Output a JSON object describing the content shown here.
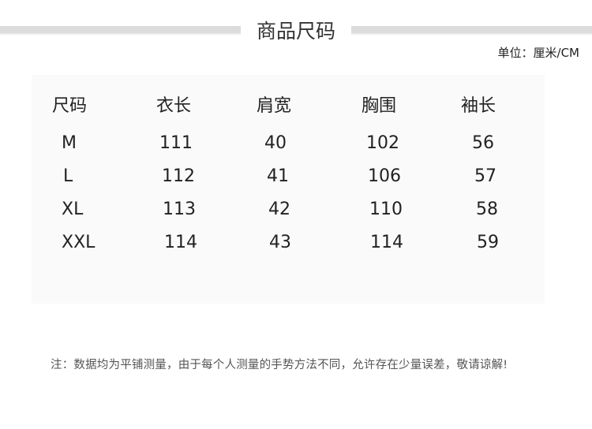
{
  "title": "商品尺码",
  "unit": "单位：厘米/CM",
  "table": {
    "headers": [
      "尺码",
      "衣长",
      "肩宽",
      "胸围",
      "袖长"
    ],
    "rows": [
      [
        "M",
        "111",
        "40",
        "102",
        "56"
      ],
      [
        "L",
        "112",
        "41",
        "106",
        "57"
      ],
      [
        "XL",
        "113",
        "42",
        "110",
        "58"
      ],
      [
        "XXL",
        "114",
        "43",
        "114",
        "59"
      ]
    ]
  },
  "note": "注：数据均为平铺测量，由于每个人测量的手势方法不同，允许存在少量误差，敬请谅解!"
}
